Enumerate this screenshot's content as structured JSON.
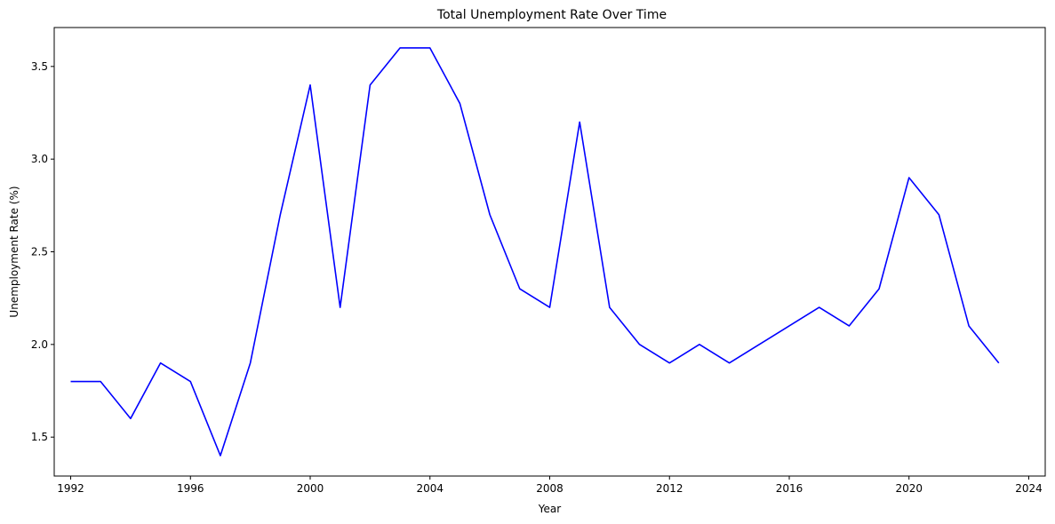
{
  "chart_data": {
    "type": "line",
    "title": "Total Unemployment Rate Over Time",
    "xlabel": "Year",
    "ylabel": "Unemployment Rate (%)",
    "xlim": [
      1991.45,
      2024.55
    ],
    "ylim": [
      1.29,
      3.71
    ],
    "x_ticks": [
      "1992",
      "1996",
      "2000",
      "2004",
      "2008",
      "2012",
      "2016",
      "2020",
      "2024"
    ],
    "y_ticks": [
      "1.5",
      "2.0",
      "2.5",
      "3.0",
      "3.5"
    ],
    "grid": false,
    "legend": "none",
    "series": [
      {
        "color": "#0000ff",
        "x": [
          1992,
          1993,
          1994,
          1995,
          1996,
          1997,
          1998,
          1999,
          2000,
          2001,
          2002,
          2003,
          2004,
          2005,
          2006,
          2007,
          2008,
          2009,
          2010,
          2011,
          2012,
          2013,
          2014,
          2015,
          2016,
          2017,
          2018,
          2019,
          2020,
          2021,
          2022,
          2023
        ],
        "y": [
          1.8,
          1.8,
          1.6,
          1.9,
          1.8,
          1.4,
          1.9,
          2.7,
          3.4,
          2.2,
          3.4,
          3.6,
          3.6,
          3.3,
          2.7,
          2.3,
          2.2,
          3.2,
          2.2,
          2.0,
          1.9,
          2.0,
          1.9,
          2.0,
          2.1,
          2.2,
          2.1,
          2.3,
          2.9,
          2.7,
          2.1,
          1.9
        ]
      }
    ]
  }
}
